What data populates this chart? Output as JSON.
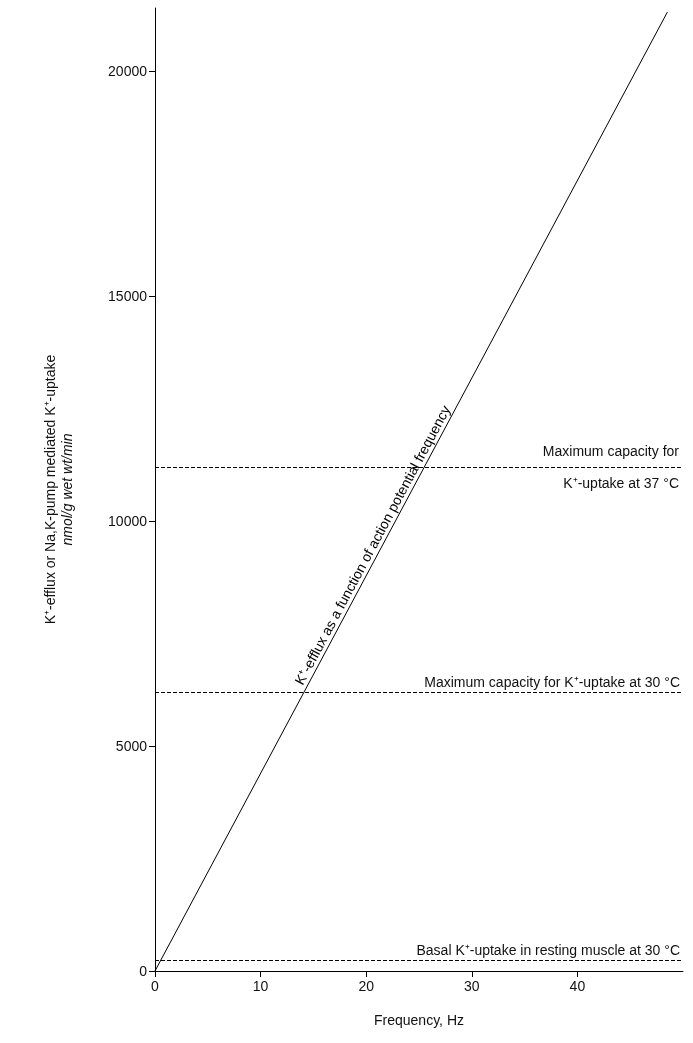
{
  "chart_data": {
    "type": "line",
    "xlabel": "Frequency, Hz",
    "ylabel": "K⁺-efflux or Na,K-pump mediated K⁺-uptake\nnmol/g wet wt/min",
    "series": [
      {
        "name": "K⁺-efflux as a function of action potential frequency",
        "color": "#000000",
        "x": [
          0,
          48.5
        ],
        "values": [
          0,
          21300
        ]
      }
    ],
    "xlim": [
      0,
      50
    ],
    "xticks": [
      0,
      10,
      20,
      30,
      40
    ],
    "ylim": [
      0,
      21400
    ],
    "yticks": [
      0,
      5000,
      10000,
      15000,
      20000
    ],
    "ref_lines": [
      {
        "axis": "y",
        "value": 11200,
        "label": "Maximum capacity for\nK⁺-uptake at 37 °C",
        "color": "#000000",
        "line_style": "dashed"
      },
      {
        "axis": "y",
        "value": 6200,
        "label": "Maximum capacity for K⁺-uptake at 30 °C",
        "color": "#000000",
        "line_style": "dashed"
      },
      {
        "axis": "y",
        "value": 250,
        "label": "Basal K⁺-uptake in resting muscle at 30 °C",
        "color": "#000000",
        "line_style": "dashed"
      }
    ],
    "grid": false,
    "legend": false,
    "marker": "none",
    "line_style": "solid"
  }
}
